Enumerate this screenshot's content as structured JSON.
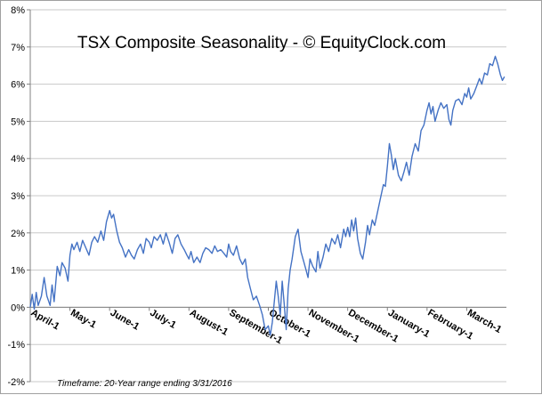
{
  "chart_data": {
    "type": "line",
    "title": "TSX Composite Seasonality - © EquityClock.com",
    "footnote": "Timeframe: 20-Year range ending 3/31/2016",
    "xlabel": "",
    "ylabel": "",
    "ylim": [
      -2,
      8
    ],
    "y_ticks": [
      "-2%",
      "-1%",
      "0%",
      "1%",
      "2%",
      "3%",
      "4%",
      "5%",
      "6%",
      "7%",
      "8%"
    ],
    "x_ticks": [
      "April-1",
      "May-1",
      "June-1",
      "July-1",
      "August-1",
      "September-1",
      "October-1",
      "November-1",
      "December-1",
      "January-1",
      "February-1",
      "March-1"
    ],
    "grid": true,
    "line_color": "#4472c4",
    "series": [
      {
        "values": [
          [
            0.0,
            0.0
          ],
          [
            0.05,
            0.35
          ],
          [
            0.1,
            -0.05
          ],
          [
            0.15,
            0.4
          ],
          [
            0.2,
            0.05
          ],
          [
            0.28,
            0.3
          ],
          [
            0.35,
            0.8
          ],
          [
            0.42,
            0.3
          ],
          [
            0.5,
            0.05
          ],
          [
            0.55,
            0.6
          ],
          [
            0.6,
            0.15
          ],
          [
            0.68,
            1.1
          ],
          [
            0.75,
            0.85
          ],
          [
            0.8,
            1.2
          ],
          [
            0.88,
            1.05
          ],
          [
            0.95,
            0.7
          ],
          [
            1.0,
            1.4
          ],
          [
            1.05,
            1.7
          ],
          [
            1.1,
            1.55
          ],
          [
            1.18,
            1.75
          ],
          [
            1.25,
            1.5
          ],
          [
            1.32,
            1.8
          ],
          [
            1.4,
            1.6
          ],
          [
            1.48,
            1.4
          ],
          [
            1.55,
            1.75
          ],
          [
            1.62,
            1.9
          ],
          [
            1.7,
            1.75
          ],
          [
            1.78,
            2.05
          ],
          [
            1.85,
            1.8
          ],
          [
            1.92,
            2.3
          ],
          [
            2.0,
            2.6
          ],
          [
            2.05,
            2.4
          ],
          [
            2.1,
            2.5
          ],
          [
            2.18,
            2.05
          ],
          [
            2.25,
            1.75
          ],
          [
            2.32,
            1.6
          ],
          [
            2.4,
            1.35
          ],
          [
            2.48,
            1.55
          ],
          [
            2.55,
            1.4
          ],
          [
            2.62,
            1.3
          ],
          [
            2.7,
            1.55
          ],
          [
            2.78,
            1.7
          ],
          [
            2.85,
            1.45
          ],
          [
            2.92,
            1.85
          ],
          [
            3.0,
            1.75
          ],
          [
            3.05,
            1.6
          ],
          [
            3.12,
            1.9
          ],
          [
            3.2,
            1.8
          ],
          [
            3.28,
            1.95
          ],
          [
            3.35,
            1.7
          ],
          [
            3.42,
            2.0
          ],
          [
            3.5,
            1.75
          ],
          [
            3.58,
            1.45
          ],
          [
            3.65,
            1.85
          ],
          [
            3.72,
            1.95
          ],
          [
            3.8,
            1.7
          ],
          [
            3.88,
            1.55
          ],
          [
            3.95,
            1.4
          ],
          [
            4.0,
            1.3
          ],
          [
            4.05,
            1.5
          ],
          [
            4.12,
            1.2
          ],
          [
            4.2,
            1.35
          ],
          [
            4.28,
            1.2
          ],
          [
            4.35,
            1.45
          ],
          [
            4.42,
            1.6
          ],
          [
            4.5,
            1.55
          ],
          [
            4.58,
            1.45
          ],
          [
            4.65,
            1.65
          ],
          [
            4.72,
            1.5
          ],
          [
            4.8,
            1.55
          ],
          [
            4.88,
            1.45
          ],
          [
            4.95,
            1.35
          ],
          [
            5.0,
            1.7
          ],
          [
            5.05,
            1.5
          ],
          [
            5.12,
            1.4
          ],
          [
            5.2,
            1.65
          ],
          [
            5.28,
            1.3
          ],
          [
            5.35,
            1.15
          ],
          [
            5.42,
            1.3
          ],
          [
            5.48,
            0.8
          ],
          [
            5.55,
            0.5
          ],
          [
            5.62,
            0.2
          ],
          [
            5.7,
            0.3
          ],
          [
            5.78,
            0.05
          ],
          [
            5.85,
            -0.2
          ],
          [
            5.92,
            -0.6
          ],
          [
            6.0,
            -0.5
          ],
          [
            6.05,
            -0.75
          ],
          [
            6.1,
            -0.4
          ],
          [
            6.15,
            0.15
          ],
          [
            6.2,
            0.7
          ],
          [
            6.25,
            0.3
          ],
          [
            6.3,
            -0.2
          ],
          [
            6.35,
            0.7
          ],
          [
            6.4,
            0.1
          ],
          [
            6.45,
            -0.6
          ],
          [
            6.5,
            0.5
          ],
          [
            6.55,
            1.0
          ],
          [
            6.6,
            1.3
          ],
          [
            6.68,
            1.9
          ],
          [
            6.75,
            2.1
          ],
          [
            6.82,
            1.5
          ],
          [
            6.9,
            1.2
          ],
          [
            6.95,
            1.0
          ],
          [
            7.0,
            0.8
          ],
          [
            7.05,
            1.3
          ],
          [
            7.12,
            1.1
          ],
          [
            7.2,
            0.95
          ],
          [
            7.25,
            1.5
          ],
          [
            7.3,
            1.05
          ],
          [
            7.38,
            1.35
          ],
          [
            7.45,
            1.7
          ],
          [
            7.52,
            1.5
          ],
          [
            7.6,
            1.85
          ],
          [
            7.68,
            1.7
          ],
          [
            7.75,
            1.95
          ],
          [
            7.82,
            1.6
          ],
          [
            7.9,
            2.1
          ],
          [
            7.95,
            1.9
          ],
          [
            8.0,
            2.15
          ],
          [
            8.05,
            1.9
          ],
          [
            8.1,
            2.35
          ],
          [
            8.15,
            2.05
          ],
          [
            8.2,
            2.4
          ],
          [
            8.25,
            1.85
          ],
          [
            8.32,
            1.45
          ],
          [
            8.38,
            1.3
          ],
          [
            8.45,
            1.75
          ],
          [
            8.5,
            2.2
          ],
          [
            8.55,
            1.95
          ],
          [
            8.62,
            2.35
          ],
          [
            8.68,
            2.2
          ],
          [
            8.75,
            2.55
          ],
          [
            8.82,
            2.9
          ],
          [
            8.9,
            3.3
          ],
          [
            8.95,
            3.25
          ],
          [
            9.0,
            3.8
          ],
          [
            9.05,
            4.4
          ],
          [
            9.1,
            4.1
          ],
          [
            9.15,
            3.7
          ],
          [
            9.2,
            4.0
          ],
          [
            9.28,
            3.55
          ],
          [
            9.35,
            3.4
          ],
          [
            9.42,
            3.65
          ],
          [
            9.48,
            3.9
          ],
          [
            9.55,
            3.55
          ],
          [
            9.62,
            4.05
          ],
          [
            9.7,
            4.4
          ],
          [
            9.78,
            4.2
          ],
          [
            9.85,
            4.75
          ],
          [
            9.92,
            4.9
          ],
          [
            10.0,
            5.3
          ],
          [
            10.05,
            5.5
          ],
          [
            10.1,
            5.2
          ],
          [
            10.15,
            5.4
          ],
          [
            10.2,
            5.0
          ],
          [
            10.28,
            5.3
          ],
          [
            10.35,
            5.5
          ],
          [
            10.42,
            5.35
          ],
          [
            10.5,
            5.45
          ],
          [
            10.55,
            5.05
          ],
          [
            10.6,
            4.9
          ],
          [
            10.65,
            5.3
          ],
          [
            10.72,
            5.55
          ],
          [
            10.8,
            5.6
          ],
          [
            10.88,
            5.45
          ],
          [
            10.95,
            5.75
          ],
          [
            11.0,
            5.65
          ],
          [
            11.05,
            5.9
          ],
          [
            11.1,
            5.6
          ],
          [
            11.18,
            5.75
          ],
          [
            11.25,
            5.95
          ],
          [
            11.32,
            6.15
          ],
          [
            11.38,
            6.0
          ],
          [
            11.45,
            6.3
          ],
          [
            11.52,
            6.25
          ],
          [
            11.58,
            6.55
          ],
          [
            11.65,
            6.5
          ],
          [
            11.72,
            6.75
          ],
          [
            11.78,
            6.55
          ],
          [
            11.85,
            6.25
          ],
          [
            11.9,
            6.1
          ],
          [
            11.95,
            6.2
          ]
        ]
      }
    ]
  }
}
